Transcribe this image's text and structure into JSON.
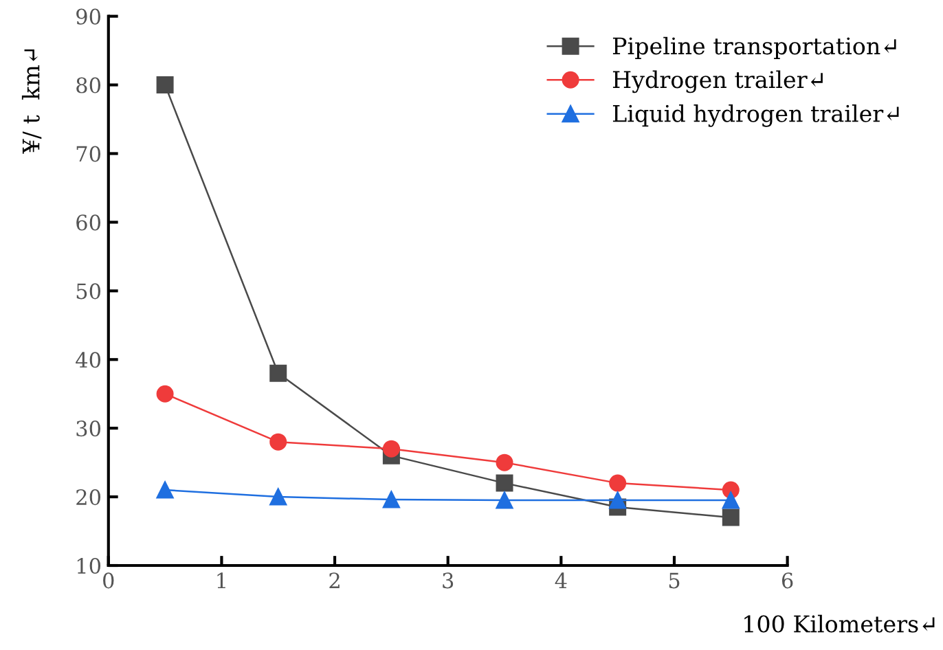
{
  "chart_data": {
    "type": "line",
    "xlabel": "100 Kilometers↵",
    "ylabel": "¥/ t  km↵",
    "x": [
      0.5,
      1.5,
      2.5,
      3.5,
      4.5,
      5.5
    ],
    "series": [
      {
        "name": "Pipeline transportation↵",
        "color": "#4a4a4a",
        "marker": "square",
        "values": [
          80,
          38,
          26,
          22,
          18.5,
          17
        ]
      },
      {
        "name": "Hydrogen trailer↵",
        "color": "#ef3b3b",
        "marker": "circle",
        "values": [
          35,
          28,
          27,
          25,
          22,
          21
        ]
      },
      {
        "name": "Liquid hydrogen trailer↵",
        "color": "#1f6fe0",
        "marker": "triangle",
        "values": [
          21,
          20,
          19.6,
          19.5,
          19.5,
          19.5
        ]
      }
    ],
    "xlim": [
      0,
      6
    ],
    "xticks": [
      0,
      1,
      2,
      3,
      4,
      5,
      6
    ],
    "ylim": [
      10,
      90
    ],
    "yticks": [
      10,
      20,
      30,
      40,
      50,
      60,
      70,
      80,
      90
    ],
    "grid": false,
    "legend": "top right",
    "line_style": "solid"
  }
}
